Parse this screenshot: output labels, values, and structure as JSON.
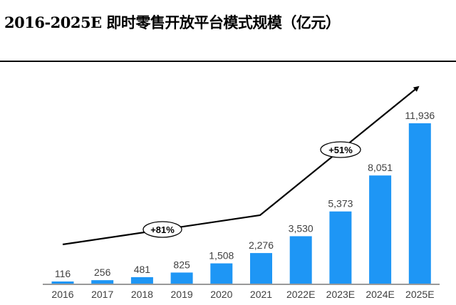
{
  "title": "2016-2025E 即时零售开放平台模式规模（亿元）",
  "chart_data": {
    "type": "bar",
    "title": "2016-2025E 即时零售开放平台模式规模（亿元）",
    "categories": [
      "2016",
      "2017",
      "2018",
      "2019",
      "2020",
      "2021",
      "2022E",
      "2023E",
      "2024E",
      "2025E"
    ],
    "values": [
      116,
      256,
      481,
      825,
      1508,
      2276,
      3530,
      5373,
      8051,
      11936
    ],
    "value_labels": [
      "116",
      "256",
      "481",
      "825",
      "1,508",
      "2,276",
      "3,530",
      "5,373",
      "8,051",
      "11,936"
    ],
    "xlabel": "",
    "ylabel": "",
    "ylim": [
      0,
      11936
    ],
    "grid": false,
    "bar_color": "#1E96F5",
    "annotations": [
      {
        "text": "+81%",
        "period": "2016-2021"
      },
      {
        "text": "+51%",
        "period": "2021-2025E"
      }
    ]
  }
}
